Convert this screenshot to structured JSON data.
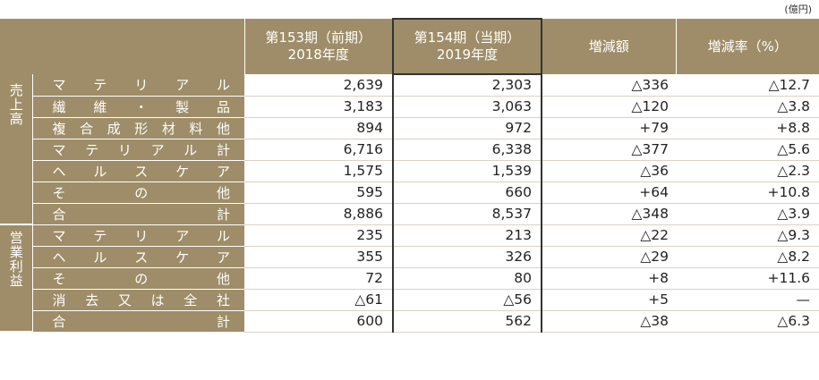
{
  "unit_label": "(億円)",
  "header": {
    "prev_line1": "第153期（前期）",
    "prev_line2": "2018年度",
    "curr_line1": "第154期（当期）",
    "curr_line2": "2019年度",
    "diff": "増減額",
    "rate": "増減率（%）"
  },
  "sales": {
    "group_label": "売上高",
    "rows": [
      {
        "label": "マテリアル",
        "prev": "2,639",
        "curr": "2,303",
        "diff": "△336",
        "rate": "△12.7"
      },
      {
        "label": "繊維・製品",
        "prev": "3,183",
        "curr": "3,063",
        "diff": "△120",
        "rate": "△3.8"
      },
      {
        "label": "複合成形材料他",
        "prev": "894",
        "curr": "972",
        "diff": "+79",
        "rate": "+8.8"
      },
      {
        "label": "マテリアル計",
        "prev": "6,716",
        "curr": "6,338",
        "diff": "△377",
        "rate": "△5.6"
      },
      {
        "label": "ヘルスケア",
        "prev": "1,575",
        "curr": "1,539",
        "diff": "△36",
        "rate": "△2.3"
      },
      {
        "label": "その他",
        "prev": "595",
        "curr": "660",
        "diff": "+64",
        "rate": "+10.8"
      }
    ],
    "total": {
      "label": "合計",
      "prev": "8,886",
      "curr": "8,537",
      "diff": "△348",
      "rate": "△3.9"
    }
  },
  "operating_income": {
    "group_label": "営業利益",
    "rows": [
      {
        "label": "マテリアル",
        "prev": "235",
        "curr": "213",
        "diff": "△22",
        "rate": "△9.3"
      },
      {
        "label": "ヘルスケア",
        "prev": "355",
        "curr": "326",
        "diff": "△29",
        "rate": "△8.2"
      },
      {
        "label": "その他",
        "prev": "72",
        "curr": "80",
        "diff": "+8",
        "rate": "+11.6"
      },
      {
        "label": "消去又は全社",
        "prev": "△61",
        "curr": "△56",
        "diff": "+5",
        "rate": "—"
      }
    ],
    "total": {
      "label": "合計",
      "prev": "600",
      "curr": "562",
      "diff": "△38",
      "rate": "△6.3"
    }
  }
}
